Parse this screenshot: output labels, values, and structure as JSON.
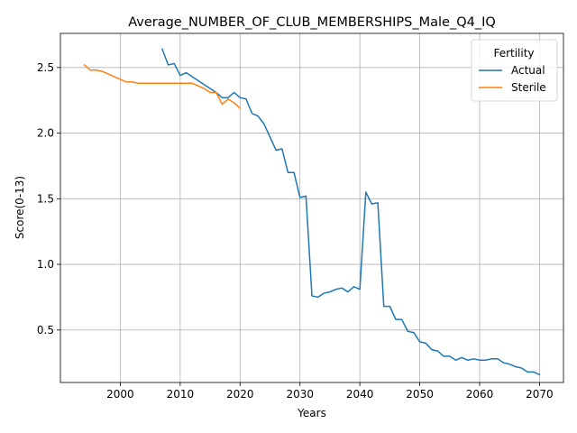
{
  "chart_data": {
    "type": "line",
    "title": "Average_NUMBER_OF_CLUB_MEMBERSHIPS_Male_Q4_IQ",
    "xlabel": "Years",
    "ylabel": "Score(0-13)",
    "xlim": [
      1990,
      2074
    ],
    "ylim": [
      0.1,
      2.76
    ],
    "xticks": [
      2000,
      2010,
      2020,
      2030,
      2040,
      2050,
      2060,
      2070
    ],
    "yticks": [
      0.5,
      1.0,
      1.5,
      2.0,
      2.5
    ],
    "xtick_labels": [
      "2000",
      "2010",
      "2020",
      "2030",
      "2040",
      "2050",
      "2060",
      "2070"
    ],
    "ytick_labels": [
      "0.5",
      "1.0",
      "1.5",
      "2.0",
      "2.5"
    ],
    "grid": true,
    "legend": {
      "title": "Fertility",
      "position": "top-right"
    },
    "series": [
      {
        "name": "Actual",
        "color": "#1f77b4",
        "x": [
          2007,
          2008,
          2009,
          2010,
          2011,
          2012,
          2013,
          2014,
          2015,
          2016,
          2017,
          2018,
          2019,
          2020,
          2021,
          2022,
          2023,
          2024,
          2025,
          2026,
          2027,
          2028,
          2029,
          2030,
          2031,
          2032,
          2033,
          2034,
          2035,
          2036,
          2037,
          2038,
          2039,
          2040,
          2041,
          2042,
          2043,
          2044,
          2045,
          2046,
          2047,
          2048,
          2049,
          2050,
          2051,
          2052,
          2053,
          2054,
          2055,
          2056,
          2057,
          2058,
          2059,
          2060,
          2061,
          2062,
          2063,
          2064,
          2065,
          2066,
          2067,
          2068,
          2069,
          2070
        ],
        "y": [
          2.64,
          2.52,
          2.53,
          2.44,
          2.46,
          2.43,
          2.4,
          2.37,
          2.34,
          2.31,
          2.27,
          2.27,
          2.31,
          2.27,
          2.26,
          2.15,
          2.13,
          2.07,
          1.97,
          1.87,
          1.88,
          1.7,
          1.7,
          1.51,
          1.52,
          0.76,
          0.75,
          0.78,
          0.79,
          0.81,
          0.82,
          0.79,
          0.83,
          0.81,
          1.55,
          1.46,
          1.47,
          0.68,
          0.68,
          0.58,
          0.58,
          0.49,
          0.48,
          0.41,
          0.4,
          0.35,
          0.34,
          0.3,
          0.3,
          0.27,
          0.29,
          0.27,
          0.28,
          0.27,
          0.27,
          0.28,
          0.28,
          0.25,
          0.24,
          0.22,
          0.21,
          0.18,
          0.18,
          0.16
        ]
      },
      {
        "name": "Sterile",
        "color": "#ff7f0e",
        "x": [
          1994,
          1995,
          1996,
          1997,
          1998,
          1999,
          2000,
          2001,
          2002,
          2003,
          2004,
          2005,
          2006,
          2007,
          2008,
          2009,
          2010,
          2011,
          2012,
          2013,
          2014,
          2015,
          2016,
          2017,
          2018,
          2019,
          2020
        ],
        "y": [
          2.52,
          2.48,
          2.48,
          2.47,
          2.45,
          2.43,
          2.41,
          2.39,
          2.39,
          2.38,
          2.38,
          2.38,
          2.38,
          2.38,
          2.38,
          2.38,
          2.38,
          2.38,
          2.38,
          2.36,
          2.34,
          2.31,
          2.31,
          2.22,
          2.26,
          2.23,
          2.19
        ]
      }
    ]
  }
}
